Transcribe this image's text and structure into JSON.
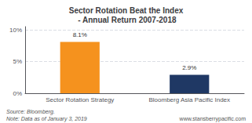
{
  "chart_data": {
    "type": "bar",
    "title": "Sector Rotation Beat the Index\n - Annual Return 2007-2018",
    "categories": [
      "Sector Rotation Strategy",
      "Bloomberg Asia Pacific Index"
    ],
    "values": [
      8.1,
      2.9
    ],
    "value_labels": [
      "8.1%",
      "2.9%"
    ],
    "colors": [
      "#F5921E",
      "#1F3864"
    ],
    "ylim": [
      0,
      10.5
    ],
    "yticks": [
      {
        "value": 0,
        "label": "0%"
      },
      {
        "value": 5,
        "label": "5%"
      },
      {
        "value": 10,
        "label": "10%"
      }
    ],
    "grid": true,
    "data_labels": true,
    "annotations": [
      "Source: Bloomberg.",
      "Note: Data as of January 3, 2019",
      "www.stansberrypacific.com"
    ]
  }
}
